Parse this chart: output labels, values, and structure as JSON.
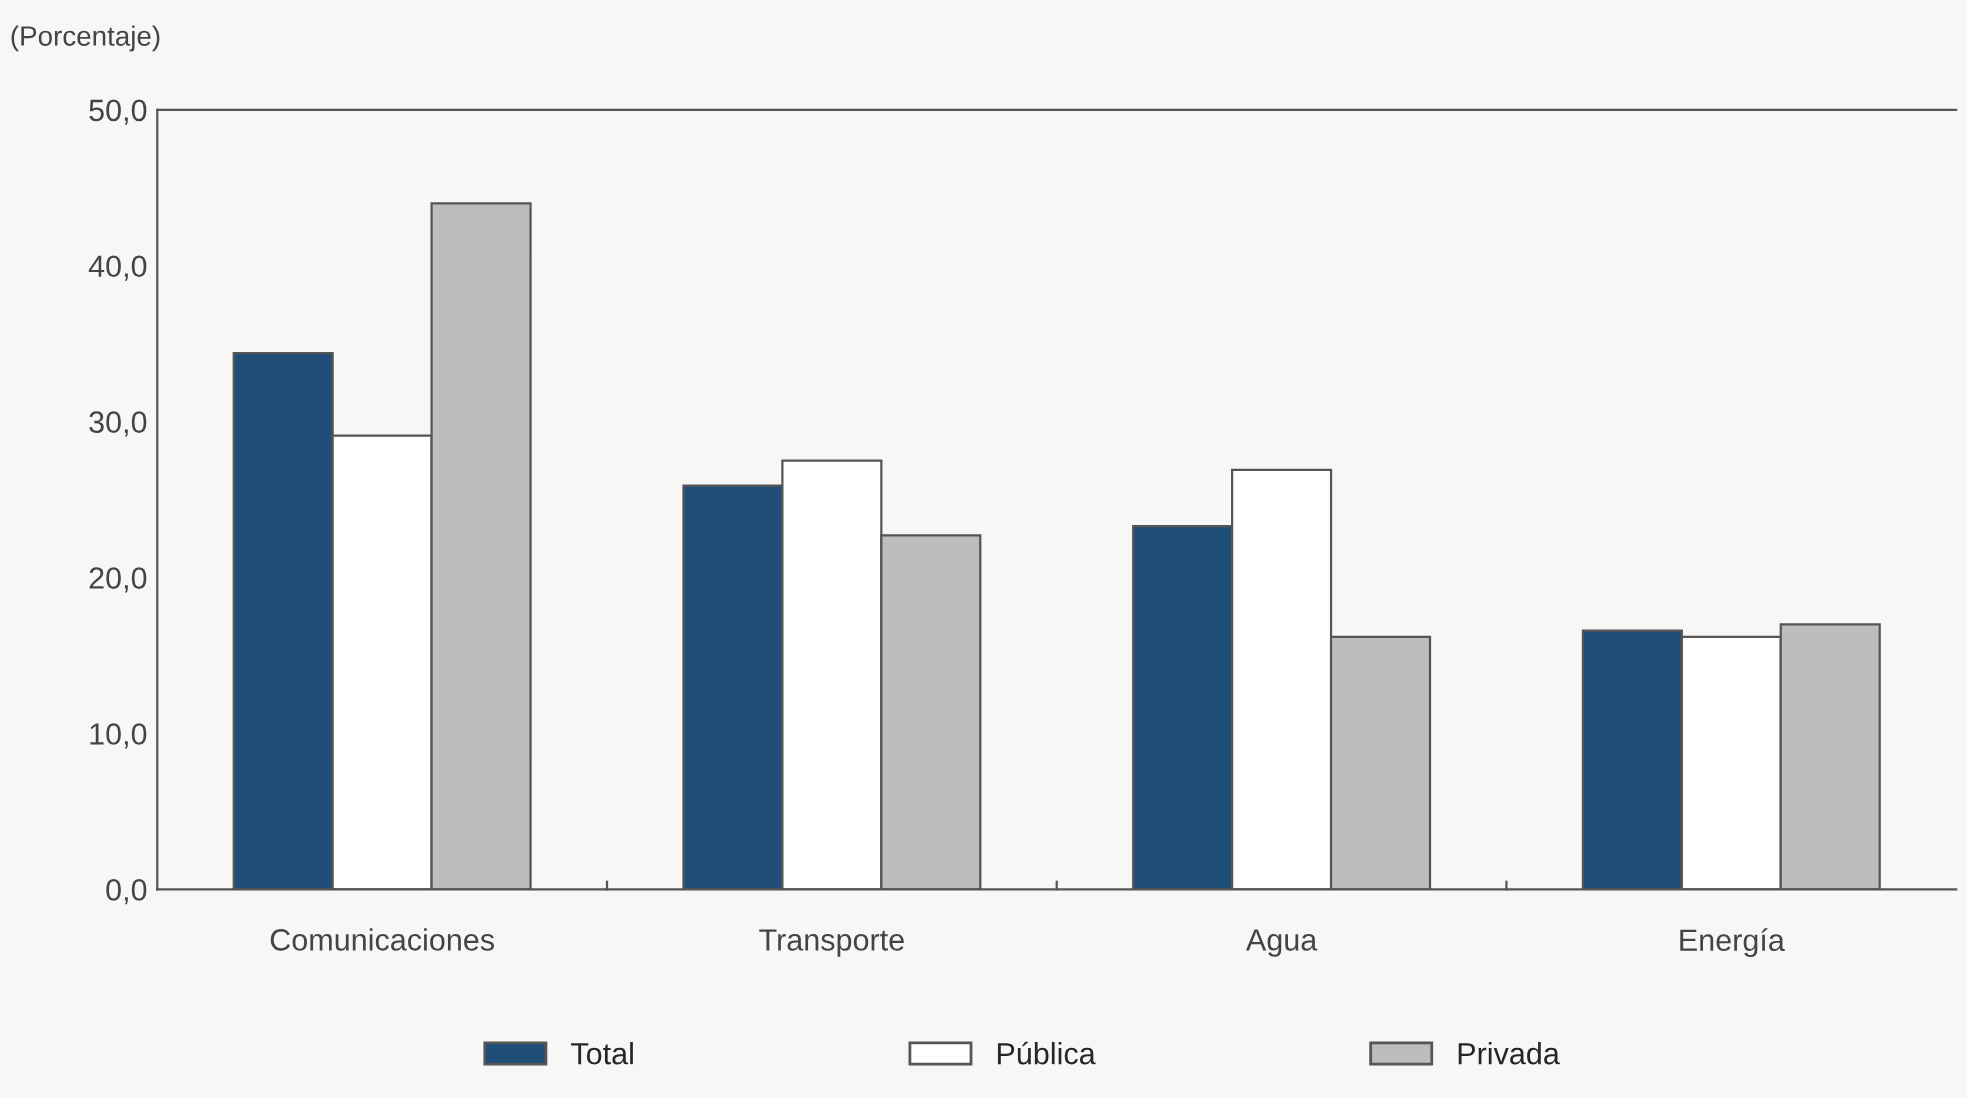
{
  "chart_data": {
    "type": "bar",
    "ylabel": "(Porcentaje)",
    "categories": [
      "Comunicaciones",
      "Transporte",
      "Agua",
      "Energía"
    ],
    "series": [
      {
        "name": "Total",
        "color": "#1f4e79",
        "values": [
          34.4,
          25.9,
          23.3,
          16.6
        ]
      },
      {
        "name": "Pública",
        "color": "#ffffff",
        "values": [
          29.1,
          27.5,
          26.9,
          16.2
        ]
      },
      {
        "name": "Privada",
        "color": "#bdbdbd",
        "values": [
          44.0,
          22.7,
          16.2,
          17.0
        ]
      }
    ],
    "ylim": [
      0,
      50
    ],
    "yticks": [
      {
        "value": 0,
        "label": "0,0"
      },
      {
        "value": 10,
        "label": "10,0"
      },
      {
        "value": 20,
        "label": "20,0"
      },
      {
        "value": 30,
        "label": "30,0"
      },
      {
        "value": 40,
        "label": "40,0"
      },
      {
        "value": 50,
        "label": "50,0"
      }
    ],
    "grid": false,
    "legend": "bottom"
  }
}
